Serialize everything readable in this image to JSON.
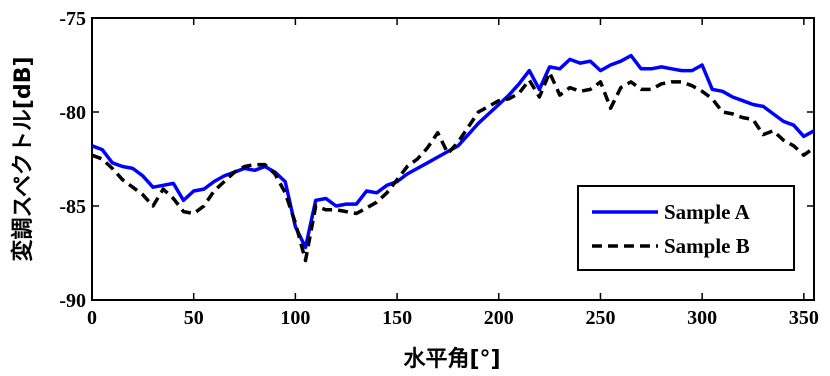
{
  "chart_data": {
    "type": "line",
    "title": "",
    "xlabel": "水平角[°]",
    "ylabel": "変調スペクトル[dB]",
    "xlim": [
      0,
      355
    ],
    "ylim": [
      -90,
      -75
    ],
    "xticks": [
      0,
      50,
      100,
      150,
      200,
      250,
      300,
      350
    ],
    "yticks": [
      -90,
      -85,
      -80,
      -75
    ],
    "grid": false,
    "legend_position": "bottom-right",
    "series": [
      {
        "name": "Sample  A",
        "color": "#0000ff",
        "style": "solid",
        "x": [
          0,
          5,
          10,
          15,
          20,
          25,
          30,
          35,
          40,
          45,
          50,
          55,
          60,
          65,
          70,
          75,
          80,
          85,
          90,
          95,
          100,
          105,
          110,
          115,
          120,
          125,
          130,
          135,
          140,
          145,
          150,
          155,
          160,
          165,
          170,
          175,
          180,
          185,
          190,
          195,
          200,
          205,
          210,
          215,
          220,
          225,
          230,
          235,
          240,
          245,
          250,
          255,
          260,
          265,
          270,
          275,
          280,
          285,
          290,
          295,
          300,
          305,
          310,
          315,
          320,
          325,
          330,
          335,
          340,
          345,
          350,
          355
        ],
        "y": [
          -81.8,
          -82.0,
          -82.7,
          -82.9,
          -83.0,
          -83.4,
          -84.0,
          -83.9,
          -83.8,
          -84.7,
          -84.2,
          -84.1,
          -83.7,
          -83.4,
          -83.2,
          -83.0,
          -83.1,
          -82.9,
          -83.2,
          -83.7,
          -86.1,
          -87.2,
          -84.7,
          -84.6,
          -85.0,
          -84.9,
          -84.9,
          -84.2,
          -84.3,
          -83.9,
          -83.7,
          -83.3,
          -83.0,
          -82.7,
          -82.4,
          -82.1,
          -81.8,
          -81.2,
          -80.6,
          -80.1,
          -79.6,
          -79.1,
          -78.5,
          -77.8,
          -78.8,
          -77.6,
          -77.7,
          -77.2,
          -77.4,
          -77.3,
          -77.8,
          -77.5,
          -77.3,
          -77.0,
          -77.7,
          -77.7,
          -77.6,
          -77.7,
          -77.8,
          -77.8,
          -77.5,
          -78.8,
          -78.9,
          -79.2,
          -79.4,
          -79.6,
          -79.7,
          -80.1,
          -80.5,
          -80.7,
          -81.3,
          -81.0
        ]
      },
      {
        "name": "Sample  B",
        "color": "#000000",
        "style": "dashed",
        "x": [
          0,
          5,
          10,
          15,
          20,
          25,
          30,
          35,
          40,
          45,
          50,
          55,
          60,
          65,
          70,
          75,
          80,
          85,
          90,
          95,
          100,
          105,
          110,
          115,
          120,
          125,
          130,
          135,
          140,
          145,
          150,
          155,
          160,
          165,
          170,
          175,
          180,
          185,
          190,
          195,
          200,
          205,
          210,
          215,
          220,
          225,
          230,
          235,
          240,
          245,
          250,
          255,
          260,
          265,
          270,
          275,
          280,
          285,
          290,
          295,
          300,
          305,
          310,
          315,
          320,
          325,
          330,
          335,
          340,
          345,
          350,
          355
        ],
        "y": [
          -82.3,
          -82.5,
          -83.0,
          -83.6,
          -84.0,
          -84.4,
          -85.0,
          -84.1,
          -84.6,
          -85.3,
          -85.4,
          -85.0,
          -84.2,
          -83.7,
          -83.2,
          -82.9,
          -82.8,
          -82.8,
          -83.3,
          -84.3,
          -85.9,
          -87.9,
          -85.0,
          -85.2,
          -85.2,
          -85.3,
          -85.4,
          -85.1,
          -84.8,
          -84.3,
          -83.6,
          -82.9,
          -82.5,
          -81.9,
          -81.1,
          -82.2,
          -81.6,
          -80.8,
          -80.0,
          -79.7,
          -79.4,
          -79.3,
          -79.0,
          -78.3,
          -79.2,
          -77.9,
          -79.1,
          -78.7,
          -78.9,
          -78.8,
          -78.4,
          -79.8,
          -78.7,
          -78.4,
          -78.8,
          -78.8,
          -78.5,
          -78.4,
          -78.4,
          -78.6,
          -78.9,
          -79.3,
          -80.0,
          -80.1,
          -80.3,
          -80.4,
          -81.2,
          -81.0,
          -81.5,
          -81.8,
          -82.3,
          -81.9
        ]
      }
    ]
  }
}
